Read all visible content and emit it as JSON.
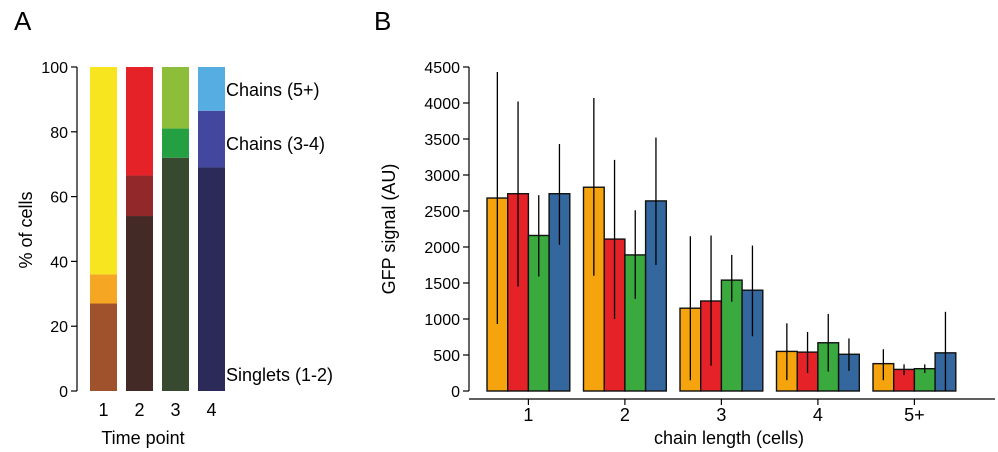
{
  "panels": {
    "a_label": "A",
    "b_label": "B"
  },
  "chart_data": [
    {
      "type": "bar",
      "stacked": true,
      "panel": "A",
      "xlabel": "Time point",
      "ylabel": "% of cells",
      "ylim": [
        0,
        100
      ],
      "yticks": [
        0,
        20,
        40,
        60,
        80,
        100
      ],
      "categories": [
        "1",
        "2",
        "3",
        "4"
      ],
      "segment_labels": [
        "Singlets (1-2)",
        "Chains (3-4)",
        "Chains (5+)"
      ],
      "stacks": [
        {
          "category": "1",
          "values": [
            27,
            9,
            64
          ],
          "colors": [
            "#a0522d",
            "#f5a623",
            "#f7e520"
          ]
        },
        {
          "category": "2",
          "values": [
            54,
            12.5,
            33.5
          ],
          "colors": [
            "#432a26",
            "#93282b",
            "#e52228"
          ]
        },
        {
          "category": "3",
          "values": [
            72,
            9,
            19
          ],
          "colors": [
            "#374a30",
            "#24a043",
            "#8cbe3a"
          ]
        },
        {
          "category": "4",
          "values": [
            69,
            17.5,
            13.5
          ],
          "colors": [
            "#2b2a58",
            "#43479e",
            "#55ade2"
          ]
        }
      ]
    },
    {
      "type": "bar",
      "panel": "B",
      "xlabel": "chain length (cells)",
      "ylabel": "GFP signal (AU)",
      "ylim": [
        0,
        4500
      ],
      "yticks": [
        0,
        500,
        1000,
        1500,
        2000,
        2500,
        3000,
        3500,
        4000,
        4500
      ],
      "categories": [
        "1",
        "2",
        "3",
        "4",
        "5+"
      ],
      "series": [
        {
          "color": "#f5a40e",
          "values": [
            2680,
            2830,
            1150,
            550,
            380
          ],
          "error_low": [
            930,
            1600,
            150,
            150,
            150
          ],
          "error_high": [
            4430,
            4070,
            2150,
            940,
            580
          ]
        },
        {
          "color": "#e52228",
          "values": [
            2740,
            2110,
            1250,
            540,
            300
          ],
          "error_low": [
            1450,
            1000,
            350,
            250,
            220
          ],
          "error_high": [
            4020,
            3210,
            2160,
            820,
            370
          ]
        },
        {
          "color": "#3aaa3f",
          "values": [
            2160,
            1890,
            1540,
            670,
            310
          ],
          "error_low": [
            1590,
            1280,
            1240,
            270,
            250
          ],
          "error_high": [
            2720,
            2510,
            1890,
            1070,
            370
          ]
        },
        {
          "color": "#33679e",
          "values": [
            2740,
            2640,
            1400,
            510,
            530
          ],
          "error_low": [
            2030,
            1750,
            760,
            280,
            0
          ],
          "error_high": [
            3430,
            3520,
            2020,
            730,
            1100
          ]
        }
      ]
    }
  ]
}
